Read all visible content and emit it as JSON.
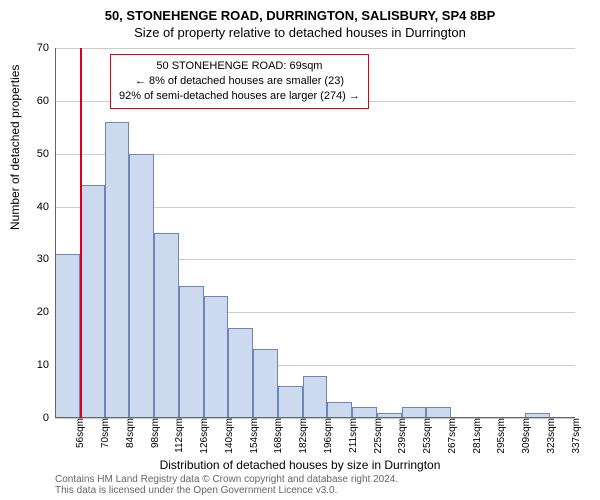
{
  "title": "50, STONEHENGE ROAD, DURRINGTON, SALISBURY, SP4 8BP",
  "subtitle": "Size of property relative to detached houses in Durrington",
  "y_axis_label": "Number of detached properties",
  "x_axis_label": "Distribution of detached houses by size in Durrington",
  "footer_line1": "Contains HM Land Registry data © Crown copyright and database right 2024.",
  "footer_line2": "This data is licensed under the Open Government Licence v3.0.",
  "chart": {
    "type": "histogram",
    "y_min": 0,
    "y_max": 70,
    "y_tick_step": 10,
    "y_ticks": [
      0,
      10,
      20,
      30,
      40,
      50,
      60,
      70
    ],
    "x_categories": [
      "56sqm",
      "70sqm",
      "84sqm",
      "98sqm",
      "112sqm",
      "126sqm",
      "140sqm",
      "154sqm",
      "168sqm",
      "182sqm",
      "196sqm",
      "211sqm",
      "225sqm",
      "239sqm",
      "253sqm",
      "267sqm",
      "281sqm",
      "295sqm",
      "309sqm",
      "323sqm",
      "337sqm"
    ],
    "values": [
      31,
      44,
      56,
      50,
      35,
      25,
      23,
      17,
      13,
      6,
      8,
      3,
      2,
      1,
      2,
      2,
      0,
      0,
      0,
      1,
      0
    ],
    "bar_fill": "#cdd9ef",
    "bar_stroke": "#6e85b7",
    "bar_width_ratio": 1.0,
    "grid_color": "#cccccc",
    "axis_color": "#666666",
    "background_color": "#ffffff",
    "tick_fontsize": 11
  },
  "marker": {
    "x_category_index": 1,
    "color": "#d9001b"
  },
  "info_box": {
    "border_color": "#d9001b",
    "line1": "50 STONEHENGE ROAD: 69sqm",
    "line2": "← 8% of detached houses are smaller (23)",
    "line3": "92% of semi-detached houses are larger (274) →"
  }
}
